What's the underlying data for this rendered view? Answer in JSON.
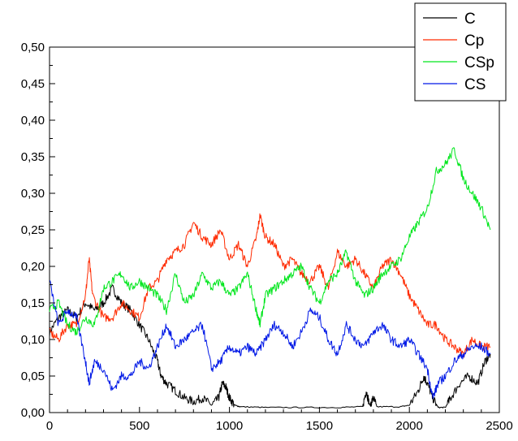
{
  "chart_data": {
    "type": "line",
    "title": "",
    "xlabel": "",
    "ylabel": "",
    "xlim": [
      0,
      2500
    ],
    "ylim": [
      0,
      0.5
    ],
    "x_ticks": [
      "0",
      "500",
      "1000",
      "1500",
      "2000",
      "2500"
    ],
    "y_ticks": [
      "0,00",
      "0,05",
      "0,10",
      "0,15",
      "0,20",
      "0,25",
      "0,30",
      "0,35",
      "0,40",
      "0,45",
      "0,50"
    ],
    "grid": false,
    "legend_position": "top-right",
    "series": [
      {
        "name": "C",
        "color": "#000000",
        "points": [
          [
            0,
            0.11
          ],
          [
            50,
            0.13
          ],
          [
            100,
            0.14
          ],
          [
            150,
            0.13
          ],
          [
            200,
            0.15
          ],
          [
            250,
            0.14
          ],
          [
            300,
            0.15
          ],
          [
            350,
            0.17
          ],
          [
            400,
            0.15
          ],
          [
            450,
            0.14
          ],
          [
            500,
            0.12
          ],
          [
            550,
            0.1
          ],
          [
            600,
            0.07
          ],
          [
            620,
            0.05
          ],
          [
            650,
            0.04
          ],
          [
            700,
            0.03
          ],
          [
            750,
            0.02
          ],
          [
            800,
            0.015
          ],
          [
            850,
            0.02
          ],
          [
            900,
            0.01
          ],
          [
            940,
            0.02
          ],
          [
            960,
            0.04
          ],
          [
            980,
            0.035
          ],
          [
            1000,
            0.02
          ],
          [
            1030,
            0.01
          ],
          [
            1060,
            0.008
          ],
          [
            1200,
            0.007
          ],
          [
            1400,
            0.007
          ],
          [
            1600,
            0.007
          ],
          [
            1740,
            0.008
          ],
          [
            1760,
            0.03
          ],
          [
            1780,
            0.01
          ],
          [
            1800,
            0.02
          ],
          [
            1820,
            0.008
          ],
          [
            1950,
            0.008
          ],
          [
            2000,
            0.01
          ],
          [
            2050,
            0.03
          ],
          [
            2080,
            0.05
          ],
          [
            2100,
            0.04
          ],
          [
            2130,
            0.02
          ],
          [
            2160,
            0.007
          ],
          [
            2200,
            0.007
          ],
          [
            2230,
            0.02
          ],
          [
            2280,
            0.04
          ],
          [
            2330,
            0.05
          ],
          [
            2380,
            0.04
          ],
          [
            2420,
            0.07
          ],
          [
            2450,
            0.08
          ]
        ]
      },
      {
        "name": "Cp",
        "color": "#ff2a00",
        "points": [
          [
            0,
            0.11
          ],
          [
            50,
            0.1
          ],
          [
            100,
            0.12
          ],
          [
            150,
            0.12
          ],
          [
            200,
            0.16
          ],
          [
            220,
            0.21
          ],
          [
            240,
            0.16
          ],
          [
            300,
            0.13
          ],
          [
            350,
            0.13
          ],
          [
            400,
            0.15
          ],
          [
            450,
            0.14
          ],
          [
            500,
            0.13
          ],
          [
            550,
            0.17
          ],
          [
            600,
            0.18
          ],
          [
            650,
            0.21
          ],
          [
            700,
            0.22
          ],
          [
            750,
            0.23
          ],
          [
            800,
            0.26
          ],
          [
            850,
            0.24
          ],
          [
            900,
            0.23
          ],
          [
            950,
            0.25
          ],
          [
            1000,
            0.21
          ],
          [
            1050,
            0.23
          ],
          [
            1100,
            0.2
          ],
          [
            1150,
            0.24
          ],
          [
            1170,
            0.27
          ],
          [
            1200,
            0.24
          ],
          [
            1250,
            0.23
          ],
          [
            1300,
            0.2
          ],
          [
            1350,
            0.21
          ],
          [
            1400,
            0.19
          ],
          [
            1450,
            0.18
          ],
          [
            1500,
            0.2
          ],
          [
            1550,
            0.17
          ],
          [
            1600,
            0.22
          ],
          [
            1650,
            0.2
          ],
          [
            1700,
            0.21
          ],
          [
            1750,
            0.19
          ],
          [
            1800,
            0.17
          ],
          [
            1850,
            0.2
          ],
          [
            1900,
            0.21
          ],
          [
            1950,
            0.19
          ],
          [
            2000,
            0.16
          ],
          [
            2050,
            0.14
          ],
          [
            2100,
            0.12
          ],
          [
            2150,
            0.12
          ],
          [
            2200,
            0.1
          ],
          [
            2250,
            0.09
          ],
          [
            2300,
            0.08
          ],
          [
            2350,
            0.1
          ],
          [
            2400,
            0.09
          ],
          [
            2450,
            0.09
          ]
        ]
      },
      {
        "name": "CSp",
        "color": "#00e61c",
        "points": [
          [
            0,
            0.14
          ],
          [
            50,
            0.15
          ],
          [
            100,
            0.12
          ],
          [
            150,
            0.11
          ],
          [
            200,
            0.13
          ],
          [
            250,
            0.12
          ],
          [
            300,
            0.17
          ],
          [
            350,
            0.18
          ],
          [
            400,
            0.19
          ],
          [
            450,
            0.17
          ],
          [
            500,
            0.18
          ],
          [
            550,
            0.17
          ],
          [
            600,
            0.16
          ],
          [
            650,
            0.14
          ],
          [
            700,
            0.19
          ],
          [
            750,
            0.15
          ],
          [
            800,
            0.16
          ],
          [
            850,
            0.19
          ],
          [
            900,
            0.17
          ],
          [
            950,
            0.18
          ],
          [
            1000,
            0.16
          ],
          [
            1050,
            0.17
          ],
          [
            1100,
            0.19
          ],
          [
            1150,
            0.14
          ],
          [
            1170,
            0.12
          ],
          [
            1200,
            0.16
          ],
          [
            1250,
            0.17
          ],
          [
            1300,
            0.18
          ],
          [
            1350,
            0.19
          ],
          [
            1400,
            0.2
          ],
          [
            1450,
            0.17
          ],
          [
            1500,
            0.15
          ],
          [
            1550,
            0.18
          ],
          [
            1600,
            0.19
          ],
          [
            1650,
            0.22
          ],
          [
            1700,
            0.18
          ],
          [
            1750,
            0.16
          ],
          [
            1800,
            0.17
          ],
          [
            1850,
            0.19
          ],
          [
            1900,
            0.2
          ],
          [
            1950,
            0.21
          ],
          [
            2000,
            0.24
          ],
          [
            2050,
            0.26
          ],
          [
            2100,
            0.28
          ],
          [
            2150,
            0.33
          ],
          [
            2200,
            0.34
          ],
          [
            2250,
            0.36
          ],
          [
            2300,
            0.32
          ],
          [
            2350,
            0.3
          ],
          [
            2400,
            0.28
          ],
          [
            2450,
            0.25
          ]
        ]
      },
      {
        "name": "CS",
        "color": "#0018e6",
        "points": [
          [
            0,
            0.18
          ],
          [
            50,
            0.12
          ],
          [
            100,
            0.14
          ],
          [
            150,
            0.13
          ],
          [
            200,
            0.07
          ],
          [
            220,
            0.04
          ],
          [
            250,
            0.07
          ],
          [
            300,
            0.06
          ],
          [
            350,
            0.03
          ],
          [
            400,
            0.05
          ],
          [
            450,
            0.05
          ],
          [
            500,
            0.07
          ],
          [
            550,
            0.06
          ],
          [
            600,
            0.09
          ],
          [
            650,
            0.12
          ],
          [
            700,
            0.09
          ],
          [
            750,
            0.1
          ],
          [
            800,
            0.11
          ],
          [
            850,
            0.12
          ],
          [
            900,
            0.06
          ],
          [
            950,
            0.07
          ],
          [
            1000,
            0.09
          ],
          [
            1050,
            0.08
          ],
          [
            1100,
            0.09
          ],
          [
            1150,
            0.08
          ],
          [
            1200,
            0.1
          ],
          [
            1250,
            0.12
          ],
          [
            1300,
            0.11
          ],
          [
            1350,
            0.09
          ],
          [
            1400,
            0.11
          ],
          [
            1450,
            0.14
          ],
          [
            1500,
            0.13
          ],
          [
            1550,
            0.1
          ],
          [
            1600,
            0.08
          ],
          [
            1650,
            0.12
          ],
          [
            1700,
            0.1
          ],
          [
            1750,
            0.09
          ],
          [
            1800,
            0.11
          ],
          [
            1850,
            0.12
          ],
          [
            1900,
            0.1
          ],
          [
            1950,
            0.09
          ],
          [
            2000,
            0.1
          ],
          [
            2050,
            0.08
          ],
          [
            2100,
            0.06
          ],
          [
            2130,
            0.02
          ],
          [
            2160,
            0.04
          ],
          [
            2200,
            0.05
          ],
          [
            2250,
            0.07
          ],
          [
            2300,
            0.08
          ],
          [
            2350,
            0.09
          ],
          [
            2400,
            0.09
          ],
          [
            2450,
            0.08
          ]
        ]
      }
    ]
  }
}
